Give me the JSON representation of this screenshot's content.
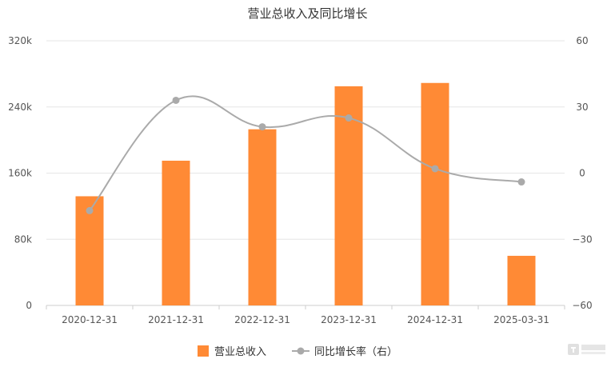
{
  "chart_data": {
    "type": "bar",
    "title": "营业总收入及同比增长",
    "categories": [
      "2020-12-31",
      "2021-12-31",
      "2022-12-31",
      "2023-12-31",
      "2024-12-31",
      "2025-03-31"
    ],
    "series": [
      {
        "name": "营业总收入",
        "type": "bar",
        "axis": "left",
        "color": "#ff8a35",
        "values": [
          132000,
          175000,
          213000,
          265000,
          269000,
          60000
        ]
      },
      {
        "name": "同比增长率（右）",
        "type": "line",
        "axis": "right",
        "color": "#aaaaaa",
        "values": [
          -17,
          33,
          21,
          25,
          2,
          -4
        ]
      }
    ],
    "left_axis": {
      "min": 0,
      "max": 320000,
      "ticks": [
        0,
        80000,
        160000,
        240000,
        320000
      ],
      "tick_labels": [
        "0",
        "80k",
        "160k",
        "240k",
        "320k"
      ]
    },
    "right_axis": {
      "min": -60,
      "max": 60,
      "ticks": [
        -60,
        -30,
        0,
        30,
        60
      ],
      "tick_labels": [
        "−60",
        "−30",
        "0",
        "30",
        "60"
      ]
    },
    "grid": true,
    "legend_position": "bottom"
  }
}
